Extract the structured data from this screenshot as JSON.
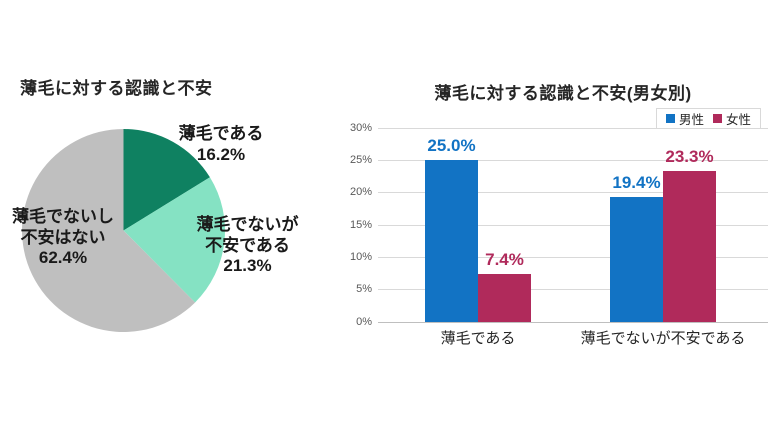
{
  "colors": {
    "background": "#FFFFFF",
    "grid": "#D9D9D9",
    "axis_base": "#BFBFBF",
    "tick_label": "#595959",
    "title_text": "#262626",
    "male_blue": "#1273C4",
    "female_crimson": "#B02A5B",
    "pie_dark_green": "#0F8161",
    "pie_mint": "#85E2C3",
    "pie_gray": "#BFBFBF"
  },
  "chart_data": [
    {
      "type": "pie",
      "title": "薄毛に対する認識と不安",
      "start_angle": "12-oclock",
      "direction": "clockwise",
      "slices": [
        {
          "label": "薄毛である",
          "value_pct": 16.2,
          "display": [
            "薄毛である",
            "16.2%"
          ],
          "color": "#0F8161"
        },
        {
          "label": "薄毛でないが不安である",
          "value_pct": 21.3,
          "display": [
            "薄毛でないが",
            "不安である",
            "21.3%"
          ],
          "color": "#85E2C3"
        },
        {
          "label": "薄毛でないし不安はない",
          "value_pct": 62.4,
          "display": [
            "薄毛でないし",
            "不安はない",
            "62.4%"
          ],
          "color": "#BFBFBF"
        }
      ]
    },
    {
      "type": "bar",
      "title": "薄毛に対する認識と不安(男女別)",
      "categories": [
        "薄毛である",
        "薄毛でないが不安である"
      ],
      "series": [
        {
          "name": "男性",
          "color": "#1273C4",
          "values": [
            25.0,
            19.4
          ],
          "labels": [
            "25.0%",
            "19.4%"
          ]
        },
        {
          "name": "女性",
          "color": "#B02A5B",
          "values": [
            7.4,
            23.3
          ],
          "labels": [
            "7.4%",
            "23.3%"
          ]
        }
      ],
      "y_axis": {
        "min": 0,
        "max": 30,
        "step": 5,
        "ticks": [
          "0%",
          "5%",
          "10%",
          "15%",
          "20%",
          "25%",
          "30%"
        ],
        "grid": true
      },
      "legend": {
        "position": "top-right",
        "entries": [
          "男性",
          "女性"
        ]
      }
    }
  ]
}
